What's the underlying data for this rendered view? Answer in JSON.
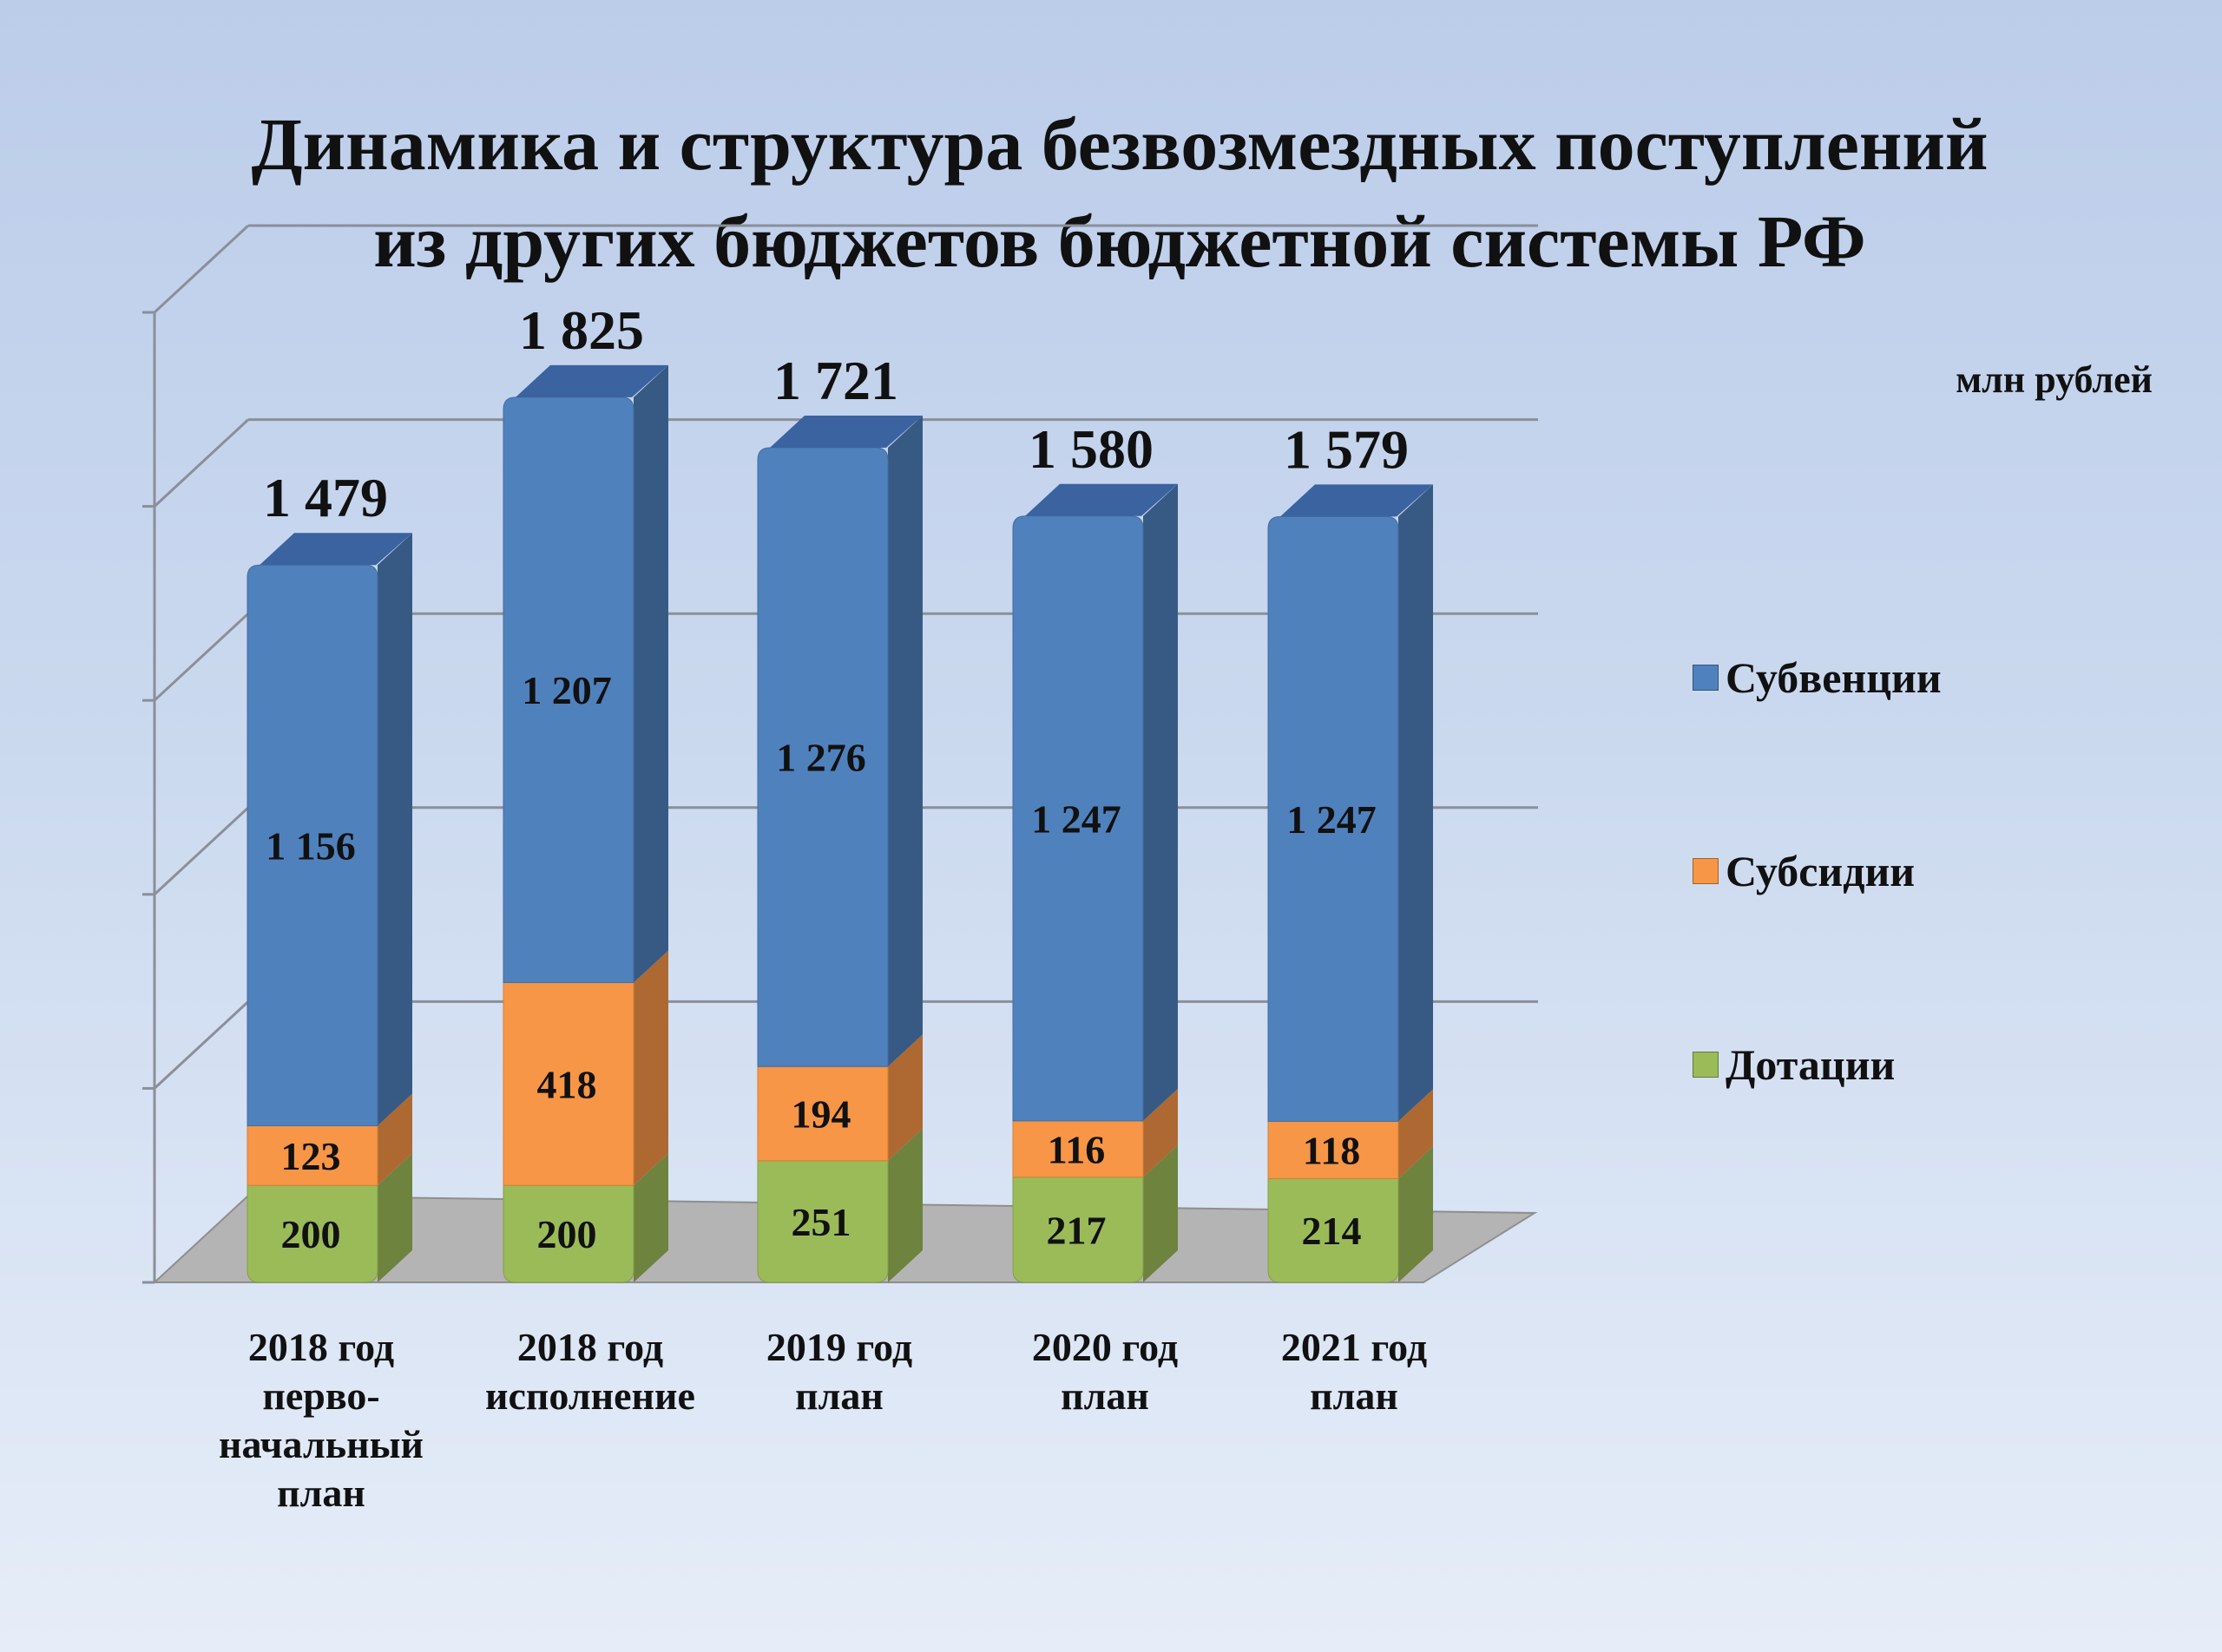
{
  "chart_data": {
    "type": "bar",
    "stacked": true,
    "title_lines": [
      "Динамика и структура безвозмездных поступлений",
      "из других бюджетов бюджетной системы РФ"
    ],
    "unit": "млн рублей",
    "categories": [
      [
        "2018 год",
        "перво-",
        "начальный",
        "план"
      ],
      [
        "2018 год",
        "исполнение"
      ],
      [
        "2019 год",
        "план"
      ],
      [
        "2020 год",
        "план"
      ],
      [
        "2021 год",
        "план"
      ]
    ],
    "series": [
      {
        "name": "Дотации",
        "values": [
          200,
          200,
          251,
          217,
          214
        ],
        "labels": [
          "200",
          "200",
          "251",
          "217",
          "214"
        ],
        "color": "#9bbb59"
      },
      {
        "name": "Субсидии",
        "values": [
          123,
          418,
          194,
          116,
          118
        ],
        "labels": [
          "123",
          "418",
          "194",
          "116",
          "118"
        ],
        "color": "#f79646"
      },
      {
        "name": "Субвенции",
        "values": [
          1156,
          1207,
          1276,
          1247,
          1247
        ],
        "labels": [
          "1 156",
          "1 207",
          "1 276",
          "1 247",
          "1 247"
        ],
        "color": "#4f81bd"
      }
    ],
    "totals": [
      1479,
      1825,
      1721,
      1580,
      1579
    ],
    "total_labels": [
      "1 479",
      "1 825",
      "1 721",
      "1 580",
      "1 579"
    ],
    "legend": [
      "Субвенции",
      "Субсидии",
      "Дотации"
    ],
    "legend_position": "right",
    "ylim": [
      0,
      2000
    ],
    "grid": true
  }
}
